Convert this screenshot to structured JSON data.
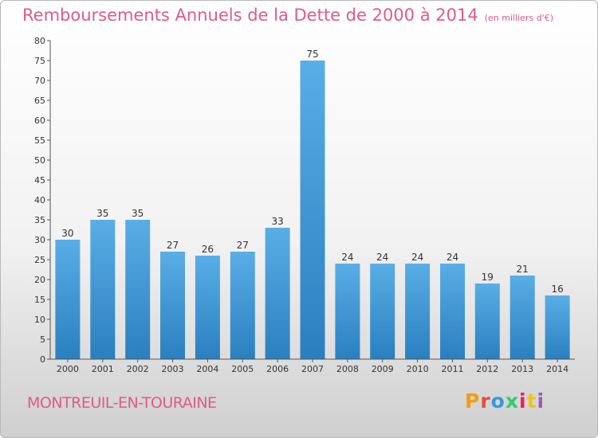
{
  "header": {
    "title": "Remboursements Annuels de la Dette de 2000 à 2014",
    "unit": "(en milliers d'€)"
  },
  "footer": {
    "place": "MONTREUIL-EN-TOURAINE",
    "logo": "Proxiti",
    "logo_colors": [
      "#f39c12",
      "#e74c3c",
      "#3498db",
      "#2ecc71",
      "#e91e63",
      "#f1c40f",
      "#9b59b6"
    ]
  },
  "colors": {
    "accent": "#e05a8a",
    "bar_light": "#5aaee6",
    "bar_dark": "#2a7fbf"
  },
  "chart_data": {
    "type": "bar",
    "categories": [
      "2000",
      "2001",
      "2002",
      "2003",
      "2004",
      "2005",
      "2006",
      "2007",
      "2008",
      "2009",
      "2010",
      "2011",
      "2012",
      "2013",
      "2014"
    ],
    "values": [
      30,
      35,
      35,
      27,
      26,
      27,
      33,
      75,
      24,
      24,
      24,
      24,
      19,
      21,
      16
    ],
    "title": "Remboursements Annuels de la Dette de 2000 à 2014",
    "ylim": [
      0,
      80
    ],
    "yticks": [
      0,
      5,
      10,
      15,
      20,
      25,
      30,
      35,
      40,
      45,
      50,
      55,
      60,
      65,
      70,
      75,
      80
    ],
    "grid": false,
    "data_labels": true
  }
}
